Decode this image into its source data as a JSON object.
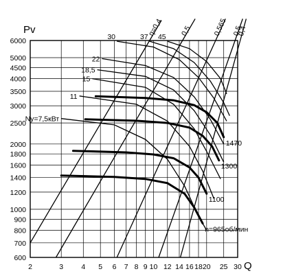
{
  "chart_data": {
    "type": "line",
    "title": "",
    "xlabel": "Q",
    "ylabel": "Pv",
    "x_scale": "log",
    "y_scale": "log",
    "xlim": [
      2,
      30
    ],
    "ylim": [
      600,
      6000
    ],
    "grid": true,
    "x_ticks": [
      2,
      3,
      4,
      5,
      6,
      7,
      8,
      9,
      10,
      12,
      14,
      16,
      18,
      20,
      25,
      30
    ],
    "y_ticks": [
      600,
      700,
      800,
      900,
      1000,
      1200,
      1400,
      1600,
      1800,
      2000,
      2500,
      3000,
      3500,
      4000,
      4500,
      5000,
      6000
    ],
    "efficiency_rays": [
      {
        "label": "η=0,4",
        "points": [
          [
            2,
            700
          ],
          [
            9.5,
            6000
          ]
        ]
      },
      {
        "label": "0,5",
        "points": [
          [
            2.8,
            600
          ],
          [
            14.6,
            6000
          ]
        ]
      },
      {
        "label": "0,565",
        "points": [
          [
            6.2,
            600
          ],
          [
            22.5,
            6000
          ]
        ]
      },
      {
        "label": "0,5",
        "points": [
          [
            10.7,
            600
          ],
          [
            29,
            6000
          ]
        ]
      },
      {
        "label": "0,4",
        "points": [
          [
            14.2,
            600
          ],
          [
            31,
            6000
          ]
        ]
      }
    ],
    "speed_characteristics": [
      {
        "label": "n=965об/мин",
        "points": [
          [
            3,
            1430
          ],
          [
            6,
            1410
          ],
          [
            9,
            1380
          ],
          [
            12,
            1320
          ],
          [
            15,
            1180
          ],
          [
            17,
            1020
          ],
          [
            19,
            860
          ]
        ]
      },
      {
        "label": "1100",
        "points": [
          [
            3.5,
            1860
          ],
          [
            7,
            1830
          ],
          [
            10,
            1790
          ],
          [
            13,
            1720
          ],
          [
            16,
            1560
          ],
          [
            18,
            1400
          ],
          [
            20,
            1180
          ]
        ]
      },
      {
        "label": "1300",
        "points": [
          [
            4.1,
            2600
          ],
          [
            8,
            2560
          ],
          [
            12,
            2500
          ],
          [
            16,
            2380
          ],
          [
            19,
            2180
          ],
          [
            21.5,
            1950
          ],
          [
            23.5,
            1680
          ]
        ]
      },
      {
        "label": "1470",
        "points": [
          [
            4.7,
            3320
          ],
          [
            9,
            3260
          ],
          [
            13,
            3180
          ],
          [
            17,
            3020
          ],
          [
            20,
            2800
          ],
          [
            23,
            2500
          ],
          [
            25,
            2150
          ]
        ]
      }
    ],
    "power_curves": [
      {
        "label": "Ny=7,5кВт",
        "points": [
          [
            3,
            2620
          ],
          [
            6,
            2450
          ],
          [
            9,
            2100
          ],
          [
            12,
            1700
          ],
          [
            15,
            1280
          ],
          [
            18,
            930
          ],
          [
            20,
            800
          ]
        ]
      },
      {
        "label": "11",
        "points": [
          [
            3.8,
            3330
          ],
          [
            8,
            3050
          ],
          [
            12,
            2550
          ],
          [
            16,
            1950
          ],
          [
            19,
            1500
          ],
          [
            22,
            1120
          ]
        ]
      },
      {
        "label": "15",
        "points": [
          [
            4.5,
            4000
          ],
          [
            9,
            3650
          ],
          [
            13,
            3050
          ],
          [
            17,
            2350
          ],
          [
            20,
            1850
          ],
          [
            24,
            1380
          ]
        ]
      },
      {
        "label": "18,5",
        "points": [
          [
            4.8,
            4400
          ],
          [
            9,
            4100
          ],
          [
            13,
            3550
          ],
          [
            17,
            2850
          ],
          [
            21,
            2200
          ],
          [
            25,
            1650
          ]
        ]
      },
      {
        "label": "22",
        "points": [
          [
            5.1,
            4950
          ],
          [
            9,
            4600
          ],
          [
            13,
            4050
          ],
          [
            17,
            3300
          ],
          [
            21,
            2600
          ],
          [
            25,
            2000
          ]
        ]
      },
      {
        "label": "30",
        "points": [
          [
            6.2,
            5950
          ],
          [
            10,
            5600
          ],
          [
            14,
            4900
          ],
          [
            18,
            4050
          ],
          [
            22,
            3250
          ],
          [
            26,
            2550
          ]
        ]
      },
      {
        "label": "37",
        "points": [
          [
            9.5,
            5950
          ],
          [
            13,
            5500
          ],
          [
            17,
            4750
          ],
          [
            21,
            3900
          ],
          [
            25,
            3100
          ],
          [
            27,
            2700
          ]
        ]
      },
      {
        "label": "45",
        "points": [
          [
            12,
            5950
          ],
          [
            16,
            5500
          ],
          [
            20,
            4800
          ],
          [
            24,
            4000
          ],
          [
            26,
            3400
          ]
        ]
      }
    ]
  }
}
